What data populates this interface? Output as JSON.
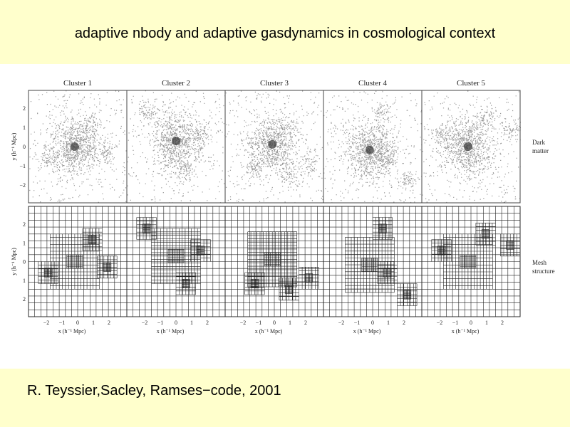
{
  "header": {
    "title": "adaptive nbody and adaptive gasdynamics in cosmological context"
  },
  "figure": {
    "panels": [
      "Cluster  1",
      "Cluster  2",
      "Cluster  3",
      "Cluster  4",
      "Cluster  5"
    ],
    "top_row": {
      "label_lines": [
        "Dark",
        "matter"
      ],
      "y_axis_label": "y (h⁻¹ Mpc)",
      "y_ticks": [
        "2",
        "1",
        "0",
        "−1",
        "−2"
      ]
    },
    "bottom_row": {
      "label_lines": [
        "Mesh",
        "structure"
      ],
      "y_axis_label": "y (h⁻¹ Mpc)",
      "y_ticks": [
        "2",
        "1",
        "0",
        "1",
        "2"
      ],
      "x_ticks": [
        "−2",
        "−1",
        "0",
        "1",
        "2"
      ],
      "x_axis_label": "x (h⁻¹ Mpc)"
    }
  },
  "footer": {
    "citation": "R. Teyssier,Sacley, Ramses−code, 2001"
  }
}
